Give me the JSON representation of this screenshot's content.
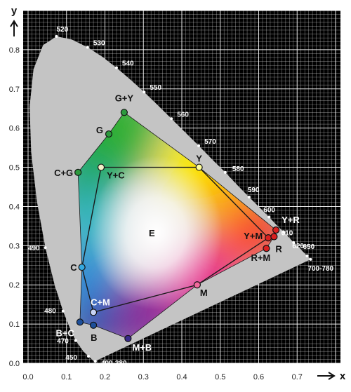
{
  "chart_data": {
    "type": "scatter",
    "title": "",
    "xlabel": "x",
    "ylabel": "y",
    "xlim": [
      0,
      0.8
    ],
    "ylim": [
      0,
      0.9
    ],
    "xticks": [
      "0.0",
      "0.1",
      "0.2",
      "0.3",
      "0.4",
      "0.5",
      "0.6",
      "0.7"
    ],
    "yticks": [
      "0.0",
      "0.1",
      "0.2",
      "0.3",
      "0.4",
      "0.5",
      "0.6",
      "0.7",
      "0.8"
    ],
    "grid": true,
    "white_point": {
      "label": "E",
      "x": 0.333,
      "y": 0.333
    },
    "spectral_locus_labels": [
      {
        "label": "400-380",
        "x": 0.175,
        "y": 0.005
      },
      {
        "label": "450",
        "x": 0.157,
        "y": 0.018
      },
      {
        "label": "470",
        "x": 0.124,
        "y": 0.058
      },
      {
        "label": "480",
        "x": 0.091,
        "y": 0.133
      },
      {
        "label": "490",
        "x": 0.045,
        "y": 0.295
      },
      {
        "label": "520",
        "x": 0.074,
        "y": 0.834
      },
      {
        "label": "530",
        "x": 0.155,
        "y": 0.806
      },
      {
        "label": "540",
        "x": 0.23,
        "y": 0.754
      },
      {
        "label": "550",
        "x": 0.302,
        "y": 0.692
      },
      {
        "label": "560",
        "x": 0.373,
        "y": 0.624
      },
      {
        "label": "570",
        "x": 0.444,
        "y": 0.555
      },
      {
        "label": "580",
        "x": 0.513,
        "y": 0.487
      },
      {
        "label": "590",
        "x": 0.575,
        "y": 0.424
      },
      {
        "label": "600",
        "x": 0.627,
        "y": 0.373
      },
      {
        "label": "610",
        "x": 0.666,
        "y": 0.334
      },
      {
        "label": "620",
        "x": 0.691,
        "y": 0.308
      },
      {
        "label": "650",
        "x": 0.726,
        "y": 0.274
      },
      {
        "label": "700-780",
        "x": 0.735,
        "y": 0.265
      }
    ],
    "points": [
      {
        "label": "G+Y",
        "x": 0.25,
        "y": 0.64,
        "color": "#2d9a3e"
      },
      {
        "label": "G",
        "x": 0.21,
        "y": 0.585,
        "color": "#2d9a3e"
      },
      {
        "label": "C+G",
        "x": 0.13,
        "y": 0.487,
        "color": "#2d9a3e"
      },
      {
        "label": "Y+C",
        "x": 0.19,
        "y": 0.5,
        "color": "#f2f2c8"
      },
      {
        "label": "Y",
        "x": 0.445,
        "y": 0.5,
        "color": "#ffff99"
      },
      {
        "label": "Y+R",
        "x": 0.645,
        "y": 0.34,
        "color": "#d92020"
      },
      {
        "label": "Y+M",
        "x": 0.625,
        "y": 0.32,
        "color": "#d92020"
      },
      {
        "label": "R",
        "x": 0.64,
        "y": 0.323,
        "color": "#d92020"
      },
      {
        "label": "R+M",
        "x": 0.62,
        "y": 0.293,
        "color": "#d92020"
      },
      {
        "label": "M",
        "x": 0.44,
        "y": 0.2,
        "color": "#f26a9c"
      },
      {
        "label": "C",
        "x": 0.14,
        "y": 0.245,
        "color": "#34a8e0"
      },
      {
        "label": "C+M",
        "x": 0.17,
        "y": 0.13,
        "color": "#c7d3f4"
      },
      {
        "label": "B+C",
        "x": 0.135,
        "y": 0.105,
        "color": "#1d4f9a"
      },
      {
        "label": "B",
        "x": 0.17,
        "y": 0.097,
        "color": "#1d4f9a"
      },
      {
        "label": "M+B",
        "x": 0.26,
        "y": 0.063,
        "color": "#3a2a8a"
      }
    ],
    "outer_gamut_order": [
      "G+Y",
      "Y",
      "Y+R",
      "R",
      "R+M",
      "M",
      "M+B",
      "B",
      "B+C",
      "C",
      "C+G",
      "G"
    ],
    "inner_triangle_order": [
      "Y+C",
      "Y",
      "Y+M",
      "M",
      "C+M",
      "C"
    ]
  }
}
